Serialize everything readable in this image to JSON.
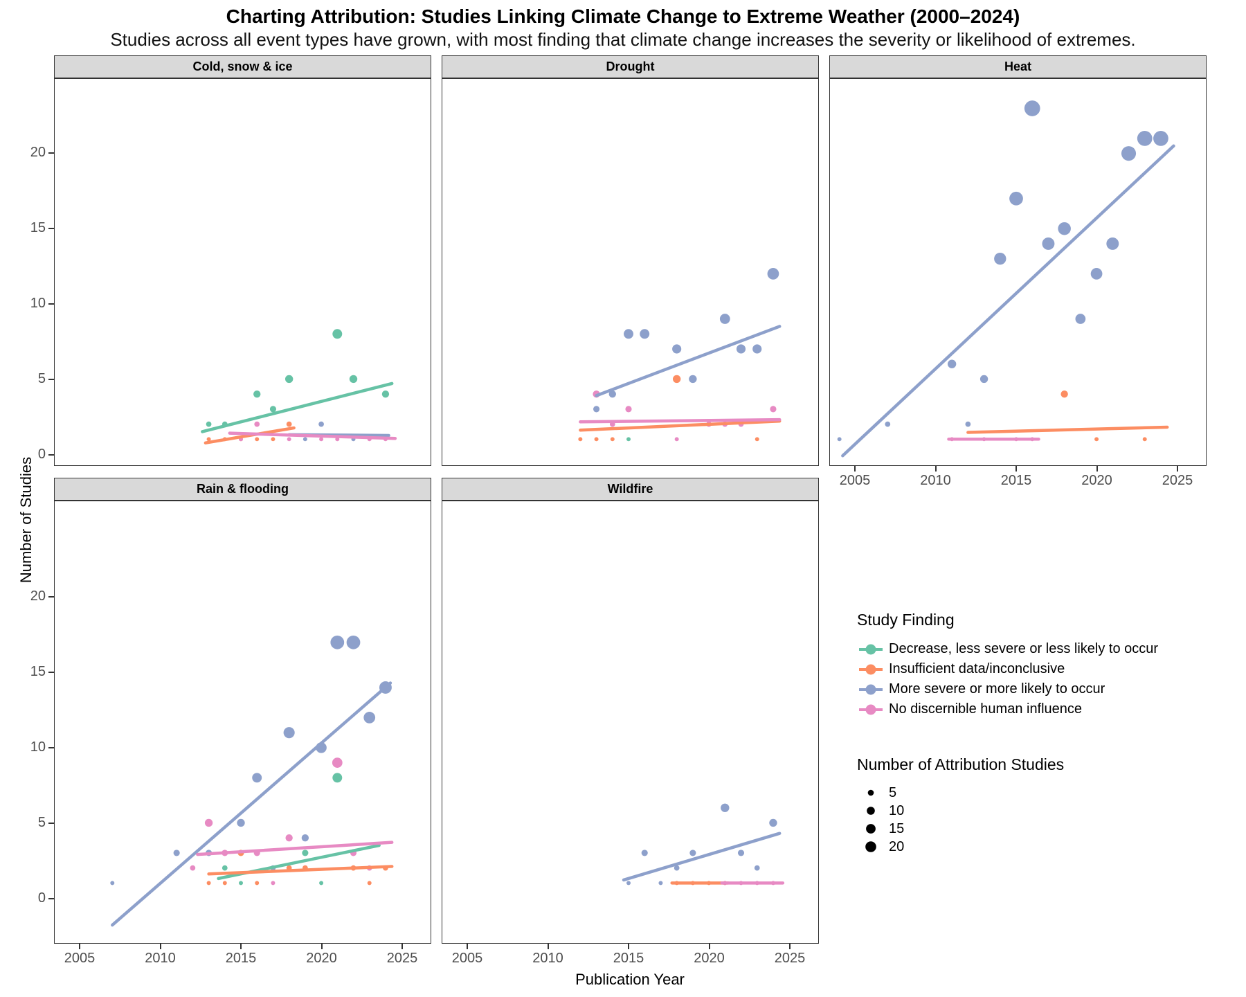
{
  "title": "Charting Attribution: Studies Linking Climate Change to Extreme Weather (2000–2024)",
  "subtitle": "Studies across all event types have grown, with most finding that climate change increases the severity or likelihood of extremes.",
  "axes": {
    "x_label": "Publication Year",
    "y_label": "Number of Studies",
    "x_ticks": [
      2005,
      2010,
      2015,
      2020,
      2025
    ],
    "y_ticks": [
      0,
      5,
      10,
      15,
      20
    ]
  },
  "legend": {
    "finding_title": "Study Finding",
    "size_title": "Number of Attribution Studies",
    "size_items": [
      5,
      10,
      15,
      20
    ],
    "findings": [
      {
        "key": "decrease",
        "label": "Decrease, less severe or less likely to occur",
        "color": "#66C2A5"
      },
      {
        "key": "insufficient",
        "label": "Insufficient data/inconclusive",
        "color": "#FC8D62"
      },
      {
        "key": "more_severe",
        "label": "More severe or more likely to occur",
        "color": "#8DA0CB"
      },
      {
        "key": "no_influence",
        "label": "No discernible human influence",
        "color": "#E78AC3"
      }
    ]
  },
  "chart_data": [
    {
      "facet": "Cold, snow & ice",
      "type": "scatter",
      "x_range": [
        2003.4,
        2026.8
      ],
      "y_range": [
        -1.2,
        24.7
      ],
      "series": [
        {
          "name": "decrease",
          "points": [
            [
              2013,
              2
            ],
            [
              2014,
              2
            ],
            [
              2016,
              4
            ],
            [
              2017,
              3
            ],
            [
              2018,
              5
            ],
            [
              2021,
              8
            ],
            [
              2022,
              5
            ],
            [
              2024,
              4
            ]
          ],
          "trend": [
            [
              2012.6,
              1.5
            ],
            [
              2024.4,
              4.7
            ]
          ]
        },
        {
          "name": "insufficient",
          "points": [
            [
              2013,
              1
            ],
            [
              2014,
              1
            ],
            [
              2015,
              1
            ],
            [
              2016,
              1
            ],
            [
              2017,
              1
            ],
            [
              2018,
              2
            ]
          ],
          "trend": [
            [
              2012.8,
              0.75
            ],
            [
              2018.3,
              1.75
            ]
          ]
        },
        {
          "name": "more_severe",
          "points": [
            [
              2019,
              1
            ],
            [
              2020,
              2
            ],
            [
              2022,
              1
            ]
          ],
          "trend": [
            [
              2018,
              1.3
            ],
            [
              2024.2,
              1.25
            ]
          ]
        },
        {
          "name": "no_influence",
          "points": [
            [
              2015,
              1
            ],
            [
              2016,
              2
            ],
            [
              2018,
              1
            ],
            [
              2020,
              1
            ],
            [
              2021,
              1
            ],
            [
              2023,
              1
            ],
            [
              2024,
              1
            ]
          ],
          "trend": [
            [
              2014.3,
              1.4
            ],
            [
              2024.6,
              1.05
            ]
          ]
        }
      ]
    },
    {
      "facet": "Drought",
      "type": "scatter",
      "x_range": [
        2003.4,
        2026.8
      ],
      "y_range": [
        -1.2,
        24.7
      ],
      "series": [
        {
          "name": "decrease",
          "points": [
            [
              2015,
              1
            ]
          ],
          "trend": null
        },
        {
          "name": "insufficient",
          "points": [
            [
              2012,
              1
            ],
            [
              2013,
              1
            ],
            [
              2014,
              1
            ],
            [
              2018,
              5
            ],
            [
              2023,
              1
            ]
          ],
          "trend": [
            [
              2012,
              1.6
            ],
            [
              2024.4,
              2.2
            ]
          ]
        },
        {
          "name": "more_severe",
          "points": [
            [
              2013,
              3
            ],
            [
              2014,
              4
            ],
            [
              2015,
              8
            ],
            [
              2016,
              8
            ],
            [
              2018,
              7
            ],
            [
              2019,
              5
            ],
            [
              2021,
              9
            ],
            [
              2022,
              7
            ],
            [
              2023,
              7
            ],
            [
              2024,
              12
            ]
          ],
          "trend": [
            [
              2013,
              3.9
            ],
            [
              2024.4,
              8.5
            ]
          ]
        },
        {
          "name": "no_influence",
          "points": [
            [
              2013,
              4
            ],
            [
              2014,
              2
            ],
            [
              2015,
              3
            ],
            [
              2018,
              1
            ],
            [
              2020,
              2
            ],
            [
              2021,
              2
            ],
            [
              2022,
              2
            ],
            [
              2024,
              3
            ]
          ],
          "trend": [
            [
              2012,
              2.15
            ],
            [
              2024.4,
              2.3
            ]
          ]
        }
      ]
    },
    {
      "facet": "Heat",
      "type": "scatter",
      "x_range": [
        2003.4,
        2026.8
      ],
      "y_range": [
        -1.2,
        24.7
      ],
      "x_axis": true,
      "series": [
        {
          "name": "insufficient",
          "points": [
            [
              2018,
              4
            ],
            [
              2020,
              1
            ],
            [
              2023,
              1
            ]
          ],
          "trend": [
            [
              2012,
              1.45
            ],
            [
              2024.4,
              1.8
            ]
          ]
        },
        {
          "name": "more_severe",
          "points": [
            [
              2004,
              1
            ],
            [
              2007,
              2
            ],
            [
              2011,
              6
            ],
            [
              2012,
              2
            ],
            [
              2013,
              5
            ],
            [
              2014,
              13
            ],
            [
              2015,
              17
            ],
            [
              2016,
              23
            ],
            [
              2017,
              14
            ],
            [
              2018,
              15
            ],
            [
              2019,
              9
            ],
            [
              2020,
              12
            ],
            [
              2021,
              14
            ],
            [
              2022,
              20
            ],
            [
              2023,
              21
            ],
            [
              2024,
              21
            ]
          ],
          "trend": [
            [
              2004.2,
              -0.1
            ],
            [
              2024.8,
              20.5
            ]
          ]
        },
        {
          "name": "no_influence",
          "points": [
            [
              2011,
              1
            ],
            [
              2013,
              1
            ],
            [
              2015,
              1
            ],
            [
              2016,
              1
            ]
          ],
          "trend": [
            [
              2010.8,
              1
            ],
            [
              2016.4,
              1
            ]
          ]
        }
      ]
    },
    {
      "facet": "Rain & flooding",
      "type": "scatter",
      "x_range": [
        2003.4,
        2026.8
      ],
      "y_range": [
        -1.2,
        24.7
      ],
      "x_axis": true,
      "series": [
        {
          "name": "decrease",
          "points": [
            [
              2014,
              2
            ],
            [
              2015,
              1
            ],
            [
              2019,
              3
            ],
            [
              2020,
              1
            ],
            [
              2021,
              8
            ]
          ],
          "trend": [
            [
              2013.6,
              1.3
            ],
            [
              2023.6,
              3.5
            ]
          ]
        },
        {
          "name": "insufficient",
          "points": [
            [
              2013,
              1
            ],
            [
              2014,
              1
            ],
            [
              2015,
              3
            ],
            [
              2016,
              1
            ],
            [
              2018,
              2
            ],
            [
              2019,
              2
            ],
            [
              2022,
              2
            ],
            [
              2023,
              1
            ],
            [
              2024,
              2
            ]
          ],
          "trend": [
            [
              2013,
              1.6
            ],
            [
              2024.4,
              2.1
            ]
          ]
        },
        {
          "name": "more_severe",
          "points": [
            [
              2007,
              1
            ],
            [
              2011,
              3
            ],
            [
              2013,
              3
            ],
            [
              2015,
              5
            ],
            [
              2016,
              8
            ],
            [
              2017,
              2
            ],
            [
              2018,
              11
            ],
            [
              2019,
              4
            ],
            [
              2020,
              10
            ],
            [
              2021,
              17
            ],
            [
              2022,
              17
            ],
            [
              2023,
              12
            ],
            [
              2024,
              14
            ]
          ],
          "trend": [
            [
              2007,
              -1.8
            ],
            [
              2024.3,
              14.3
            ]
          ]
        },
        {
          "name": "no_influence",
          "points": [
            [
              2012,
              2
            ],
            [
              2013,
              5
            ],
            [
              2014,
              3
            ],
            [
              2016,
              3
            ],
            [
              2017,
              1
            ],
            [
              2018,
              4
            ],
            [
              2021,
              9
            ],
            [
              2022,
              3
            ],
            [
              2023,
              2
            ]
          ],
          "trend": [
            [
              2012.3,
              2.9
            ],
            [
              2024.4,
              3.7
            ]
          ]
        }
      ]
    },
    {
      "facet": "Wildfire",
      "type": "scatter",
      "x_range": [
        2003.4,
        2026.8
      ],
      "y_range": [
        -1.2,
        24.7
      ],
      "x_axis": true,
      "series": [
        {
          "name": "insufficient",
          "points": [
            [
              2018,
              1
            ],
            [
              2019,
              1
            ],
            [
              2020,
              1
            ],
            [
              2021,
              1
            ]
          ],
          "trend": [
            [
              2017.7,
              1
            ],
            [
              2021.2,
              1
            ]
          ]
        },
        {
          "name": "more_severe",
          "points": [
            [
              2015,
              1
            ],
            [
              2016,
              3
            ],
            [
              2017,
              1
            ],
            [
              2018,
              2
            ],
            [
              2019,
              3
            ],
            [
              2021,
              6
            ],
            [
              2022,
              3
            ],
            [
              2023,
              2
            ],
            [
              2024,
              5
            ]
          ],
          "trend": [
            [
              2014.7,
              1.2
            ],
            [
              2024.4,
              4.3
            ]
          ]
        },
        {
          "name": "no_influence",
          "points": [
            [
              2021,
              1
            ],
            [
              2022,
              1
            ],
            [
              2023,
              1
            ],
            [
              2024,
              1
            ]
          ],
          "trend": [
            [
              2020.8,
              1
            ],
            [
              2024.6,
              1
            ]
          ]
        }
      ]
    }
  ]
}
